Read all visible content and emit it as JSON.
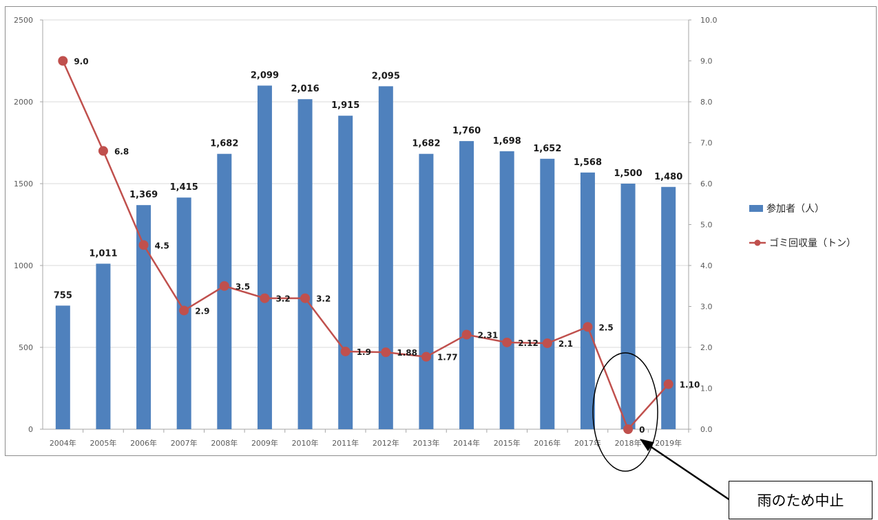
{
  "chart_data": {
    "type": "bar+line",
    "categories": [
      "2004年",
      "2005年",
      "2006年",
      "2007年",
      "2008年",
      "2009年",
      "2010年",
      "2011年",
      "2012年",
      "2013年",
      "2014年",
      "2015年",
      "2016年",
      "2017年",
      "2018年",
      "2019年"
    ],
    "series": [
      {
        "name": "参加者（人）",
        "type": "bar",
        "axis": "left",
        "color": "#4f81bd",
        "values": [
          755,
          1011,
          1369,
          1415,
          1682,
          2099,
          2016,
          1915,
          2095,
          1682,
          1760,
          1698,
          1652,
          1568,
          1500,
          1480
        ],
        "labels": [
          "755",
          "1,011",
          "1,369",
          "1,415",
          "1,682",
          "2,099",
          "2,016",
          "1,915",
          "2,095",
          "1,682",
          "1,760",
          "1,698",
          "1,652",
          "1,568",
          "1,500",
          "1,480"
        ]
      },
      {
        "name": "ゴミ回収量（トン）",
        "type": "line",
        "axis": "right",
        "color": "#c0504d",
        "values": [
          9.0,
          6.8,
          4.5,
          2.9,
          3.5,
          3.2,
          3.2,
          1.9,
          1.88,
          1.77,
          2.31,
          2.12,
          2.1,
          2.5,
          0,
          1.1
        ],
        "labels": [
          "9.0",
          "6.8",
          "4.5",
          "2.9",
          "3.5",
          "3.2",
          "3.2",
          "1.9",
          "1.88",
          "1.77",
          "2.31",
          "2.12",
          "2.1",
          "2.5",
          "0",
          "1.10"
        ]
      }
    ],
    "y_left": {
      "min": 0,
      "max": 2500,
      "ticks": [
        "0",
        "500",
        "1000",
        "1500",
        "2000",
        "2500"
      ]
    },
    "y_right": {
      "min": 0,
      "max": 10,
      "ticks": [
        "0.0",
        "1.0",
        "2.0",
        "3.0",
        "4.0",
        "5.0",
        "6.0",
        "7.0",
        "8.0",
        "9.0",
        "10.0"
      ]
    },
    "grid": true,
    "legend": "right",
    "annotation": {
      "text": "雨のため中止",
      "target": "2018年"
    }
  }
}
